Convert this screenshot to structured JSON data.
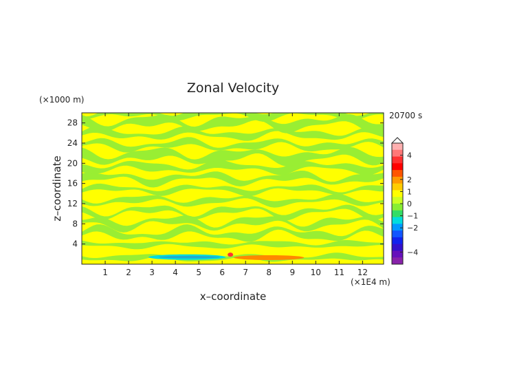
{
  "chart_data": {
    "type": "heatmap",
    "title": "Zonal Velocity",
    "xlabel": "x–coordinate",
    "ylabel": "z–coordinate",
    "x_unit": "(×1E4 m)",
    "y_unit": "(×1000 m)",
    "time_label": "20700 s",
    "x_ticks": [
      1,
      2,
      3,
      4,
      5,
      6,
      7,
      8,
      9,
      10,
      11,
      12
    ],
    "y_ticks": [
      4,
      8,
      12,
      16,
      20,
      24,
      28
    ],
    "xlim": [
      0,
      12.9
    ],
    "ylim": [
      0,
      30
    ],
    "colorbar": {
      "ticks": [
        4,
        2,
        1,
        0,
        -1,
        -2,
        -4
      ],
      "range": [
        -5,
        5
      ]
    },
    "colors": {
      "background_yellow": "#ffff00",
      "light_green": "#99ee33",
      "cyan": "#00dddd",
      "orange": "#ff8800"
    }
  }
}
